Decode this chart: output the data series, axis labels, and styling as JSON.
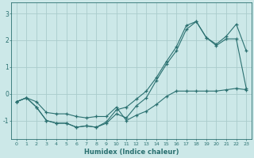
{
  "xlabel": "Humidex (Indice chaleur)",
  "ylabel": "",
  "background_color": "#cce8e8",
  "grid_color": "#aacccc",
  "line_color": "#2a7070",
  "xlim": [
    -0.5,
    23.5
  ],
  "ylim": [
    -1.7,
    3.4
  ],
  "yticks": [
    -1,
    0,
    1,
    2,
    3
  ],
  "xticks": [
    0,
    1,
    2,
    3,
    4,
    5,
    6,
    7,
    8,
    9,
    10,
    11,
    12,
    13,
    14,
    15,
    16,
    17,
    18,
    19,
    20,
    21,
    22,
    23
  ],
  "series1_x": [
    0,
    1,
    2,
    3,
    4,
    5,
    6,
    7,
    8,
    9,
    10,
    11,
    12,
    13,
    14,
    15,
    16,
    17,
    18,
    19,
    20,
    21,
    22,
    23
  ],
  "series1_y": [
    -0.3,
    -0.15,
    -0.3,
    -0.7,
    -0.75,
    -0.75,
    -0.85,
    -0.9,
    -0.85,
    -0.85,
    -0.5,
    -1.0,
    -0.8,
    -0.65,
    -0.4,
    -0.1,
    0.1,
    0.1,
    0.1,
    0.1,
    0.1,
    0.15,
    0.2,
    0.15
  ],
  "series2_x": [
    0,
    1,
    2,
    3,
    4,
    5,
    6,
    7,
    8,
    9,
    10,
    11,
    12,
    13,
    14,
    15,
    16,
    17,
    18,
    19,
    20,
    21,
    22,
    23
  ],
  "series2_y": [
    -0.3,
    -0.15,
    -0.5,
    -1.0,
    -1.1,
    -1.1,
    -1.25,
    -1.2,
    -1.25,
    -1.1,
    -0.75,
    -0.9,
    -0.45,
    -0.15,
    0.5,
    1.1,
    1.6,
    2.4,
    2.7,
    2.1,
    1.8,
    2.05,
    2.05,
    0.2
  ],
  "series3_x": [
    0,
    1,
    2,
    3,
    4,
    5,
    6,
    7,
    8,
    9,
    10,
    11,
    12,
    13,
    14,
    15,
    16,
    17,
    18,
    19,
    20,
    21,
    22,
    23
  ],
  "series3_y": [
    -0.3,
    -0.15,
    -0.5,
    -1.0,
    -1.1,
    -1.1,
    -1.25,
    -1.2,
    -1.25,
    -1.05,
    -0.6,
    -0.5,
    -0.2,
    0.1,
    0.6,
    1.2,
    1.75,
    2.55,
    2.7,
    2.1,
    1.85,
    2.15,
    2.6,
    1.6
  ]
}
